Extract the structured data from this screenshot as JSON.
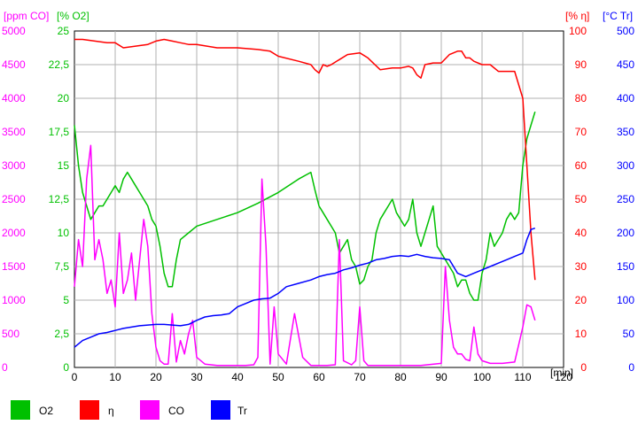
{
  "chart_data": {
    "type": "line",
    "x_unit": "[min]",
    "x_ticks": [
      "0",
      "10",
      "20",
      "30",
      "40",
      "50",
      "60",
      "70",
      "80",
      "90",
      "100",
      "110",
      "120"
    ],
    "xlim": [
      0,
      120
    ],
    "grid": true,
    "legend_placement": "bottom",
    "axes": {
      "co": {
        "unit": "[ppm CO]",
        "color": "#ff00ff",
        "range": [
          0,
          5000
        ],
        "ticks": [
          "0",
          "500",
          "1000",
          "1500",
          "2000",
          "2500",
          "3000",
          "3500",
          "4000",
          "4500",
          "5000"
        ]
      },
      "o2": {
        "unit": "[% O2]",
        "color": "#00c000",
        "range": [
          0,
          25
        ],
        "ticks": [
          "0",
          "2,5",
          "5",
          "7,5",
          "10",
          "12,5",
          "15",
          "17,5",
          "20",
          "22,5",
          "25"
        ]
      },
      "eta": {
        "unit": "[% η]",
        "color": "#ff0000",
        "range": [
          0,
          100
        ],
        "ticks": [
          "0",
          "10",
          "20",
          "30",
          "40",
          "50",
          "60",
          "70",
          "80",
          "90",
          "100"
        ]
      },
      "tr": {
        "unit": "[°C Tr]",
        "color": "#0000ff",
        "range": [
          0,
          500
        ],
        "ticks": [
          "0",
          "50",
          "100",
          "150",
          "200",
          "250",
          "300",
          "350",
          "400",
          "450",
          "500"
        ]
      }
    },
    "series": [
      {
        "name": "O2",
        "color": "#00c000",
        "axis": "o2",
        "x": [
          0,
          1,
          2,
          3,
          4,
          5,
          6,
          7,
          8,
          9,
          10,
          11,
          12,
          13,
          14,
          15,
          16,
          17,
          18,
          19,
          20,
          21,
          22,
          23,
          24,
          25,
          26,
          28,
          30,
          35,
          40,
          45,
          50,
          55,
          58,
          59,
          60,
          61,
          62,
          63,
          64,
          65,
          66,
          67,
          68,
          69,
          70,
          71,
          72,
          73,
          74,
          75,
          76,
          77,
          78,
          79,
          80,
          81,
          82,
          83,
          84,
          85,
          86,
          87,
          88,
          89,
          90,
          91,
          92,
          93,
          94,
          95,
          96,
          97,
          98,
          99,
          100,
          101,
          102,
          103,
          104,
          105,
          106,
          107,
          108,
          109,
          110,
          111,
          112,
          113
        ],
        "y": [
          18,
          15,
          13,
          12,
          11,
          11.5,
          12,
          12,
          12.5,
          13,
          13.5,
          13,
          14,
          14.5,
          14,
          13.5,
          13,
          12.5,
          12,
          11,
          10.5,
          9,
          7,
          6,
          6,
          8,
          9.5,
          10,
          10.5,
          11,
          11.5,
          12.2,
          13,
          14,
          14.5,
          13.2,
          12,
          11.5,
          11,
          10.5,
          10,
          8.5,
          9,
          9.5,
          8,
          7.5,
          6.2,
          6.5,
          7.5,
          8,
          10,
          11,
          11.5,
          12,
          12.5,
          11.5,
          11,
          10.5,
          11,
          12.5,
          10,
          9,
          10,
          11,
          12,
          9,
          8.5,
          8,
          7.5,
          7,
          6,
          6.5,
          6.5,
          5.5,
          5,
          5,
          7,
          8,
          10,
          9,
          9.5,
          10,
          11,
          11.5,
          11,
          11.5,
          15,
          17,
          18,
          19
        ]
      },
      {
        "name": "η",
        "color": "#ff0000",
        "axis": "eta",
        "x": [
          0,
          2,
          5,
          8,
          10,
          12,
          15,
          18,
          20,
          22,
          24,
          26,
          28,
          30,
          35,
          40,
          45,
          48,
          50,
          55,
          58,
          59,
          60,
          61,
          62,
          63,
          65,
          67,
          70,
          72,
          75,
          78,
          80,
          82,
          83,
          84,
          85,
          86,
          88,
          90,
          92,
          94,
          95,
          96,
          97,
          98,
          100,
          102,
          104,
          106,
          108,
          110,
          111,
          112,
          113
        ],
        "y": [
          97.5,
          97.5,
          97,
          96.5,
          96.5,
          95,
          95.5,
          96,
          97,
          97.5,
          97,
          96.5,
          96,
          96,
          95,
          95,
          94.5,
          94,
          92.5,
          91,
          90,
          88.5,
          87.5,
          90,
          89.5,
          90,
          91.5,
          93,
          93.5,
          92,
          88.5,
          89,
          89,
          89.5,
          89,
          87,
          86,
          90,
          90.5,
          90.5,
          93,
          94,
          94,
          92,
          92,
          91,
          90,
          90,
          88,
          88,
          88,
          80,
          60,
          40,
          26
        ]
      },
      {
        "name": "CO",
        "color": "#ff00ff",
        "axis": "co",
        "x": [
          0,
          1,
          2,
          3,
          4,
          5,
          6,
          7,
          8,
          9,
          10,
          11,
          12,
          13,
          14,
          15,
          16,
          17,
          18,
          19,
          20,
          21,
          22,
          23,
          24,
          25,
          26,
          27,
          28,
          29,
          30,
          32,
          35,
          38,
          40,
          41,
          42,
          44,
          45,
          46,
          47,
          48,
          49,
          50,
          52,
          54,
          56,
          58,
          60,
          62,
          64,
          65,
          66,
          68,
          69,
          70,
          71,
          72,
          75,
          80,
          85,
          90,
          91,
          92,
          93,
          94,
          95,
          96,
          97,
          98,
          99,
          100,
          102,
          105,
          108,
          110,
          111,
          112,
          113
        ],
        "y": [
          1200,
          1900,
          1500,
          2800,
          3300,
          1600,
          1900,
          1600,
          1100,
          1300,
          900,
          2000,
          1100,
          1300,
          1700,
          1000,
          1600,
          2200,
          1800,
          800,
          300,
          100,
          50,
          50,
          800,
          80,
          400,
          200,
          500,
          700,
          150,
          50,
          30,
          30,
          30,
          30,
          30,
          40,
          150,
          2800,
          1800,
          50,
          900,
          200,
          50,
          800,
          150,
          30,
          30,
          30,
          40,
          1900,
          100,
          40,
          100,
          900,
          100,
          30,
          30,
          30,
          30,
          60,
          1500,
          700,
          300,
          200,
          200,
          120,
          100,
          600,
          200,
          100,
          60,
          60,
          80,
          600,
          930,
          900,
          700
        ]
      },
      {
        "name": "Tr",
        "color": "#0000ff",
        "axis": "tr",
        "x": [
          0,
          2,
          4,
          6,
          8,
          10,
          12,
          14,
          16,
          18,
          20,
          22,
          24,
          26,
          28,
          30,
          32,
          34,
          36,
          38,
          40,
          42,
          44,
          46,
          48,
          50,
          52,
          55,
          58,
          60,
          62,
          64,
          66,
          68,
          70,
          72,
          74,
          76,
          78,
          80,
          82,
          84,
          86,
          88,
          90,
          92,
          94,
          96,
          98,
          100,
          102,
          104,
          106,
          108,
          110,
          111,
          112,
          113
        ],
        "y": [
          30,
          40,
          45,
          50,
          52,
          55,
          58,
          60,
          62,
          63,
          64,
          64,
          63,
          62,
          64,
          70,
          75,
          77,
          78,
          80,
          90,
          95,
          100,
          102,
          103,
          110,
          120,
          125,
          130,
          135,
          138,
          140,
          145,
          148,
          152,
          155,
          160,
          162,
          165,
          166,
          165,
          168,
          165,
          163,
          162,
          160,
          140,
          135,
          140,
          145,
          150,
          155,
          160,
          165,
          170,
          190,
          205,
          207
        ]
      }
    ]
  },
  "legend": [
    {
      "label": "O2",
      "color": "#00c000"
    },
    {
      "label": "η",
      "color": "#ff0000"
    },
    {
      "label": "CO",
      "color": "#ff00ff"
    },
    {
      "label": "Tr",
      "color": "#0000ff"
    }
  ]
}
